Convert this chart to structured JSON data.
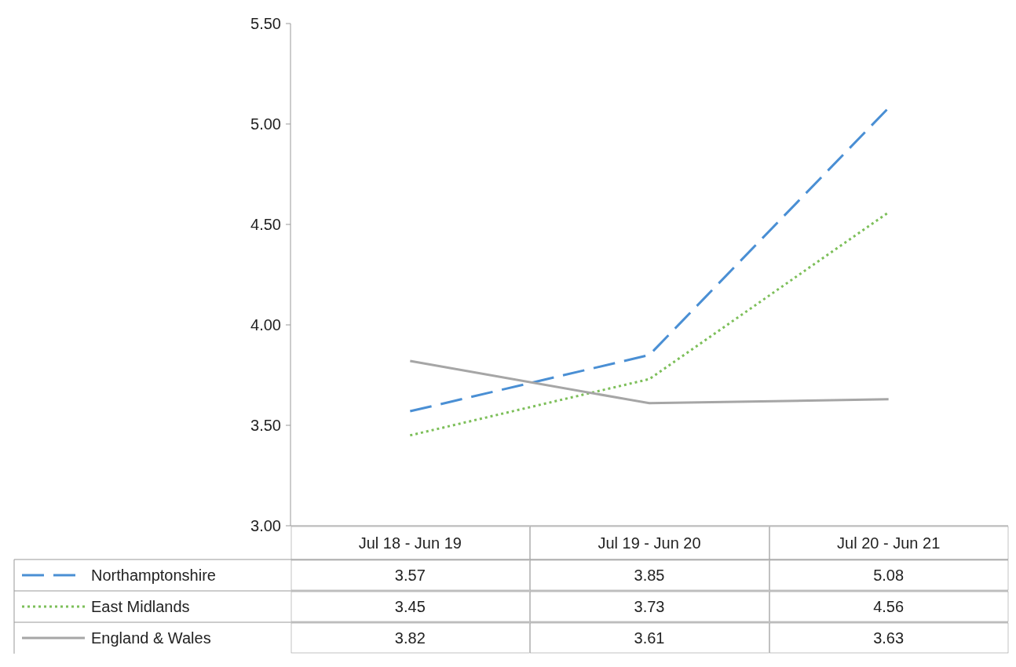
{
  "chart_data": {
    "type": "line",
    "categories": [
      "Jul 18 - Jun 19",
      "Jul 19 - Jun 20",
      "Jul 20 - Jun 21"
    ],
    "series": [
      {
        "name": "Northamptonshire",
        "color": "#4a8fd4",
        "line_style": "dashed",
        "values": [
          3.57,
          3.85,
          5.08
        ]
      },
      {
        "name": "East Midlands",
        "color": "#7dbf5a",
        "line_style": "dotted",
        "values": [
          3.45,
          3.73,
          4.56
        ]
      },
      {
        "name": "England & Wales",
        "color": "#a6a6a6",
        "line_style": "solid",
        "values": [
          3.82,
          3.61,
          3.63
        ]
      }
    ],
    "ylim": [
      3,
      5.5
    ],
    "yticks": [
      {
        "value": 3,
        "label": "3.00"
      },
      {
        "value": 3.5,
        "label": "3.50"
      },
      {
        "value": 4,
        "label": "4.00"
      },
      {
        "value": 4.5,
        "label": "4.50"
      },
      {
        "value": 5,
        "label": "5.00"
      },
      {
        "value": 5.5,
        "label": "5.50"
      }
    ],
    "data_labels": true,
    "legend": "bottom",
    "grid": false
  }
}
